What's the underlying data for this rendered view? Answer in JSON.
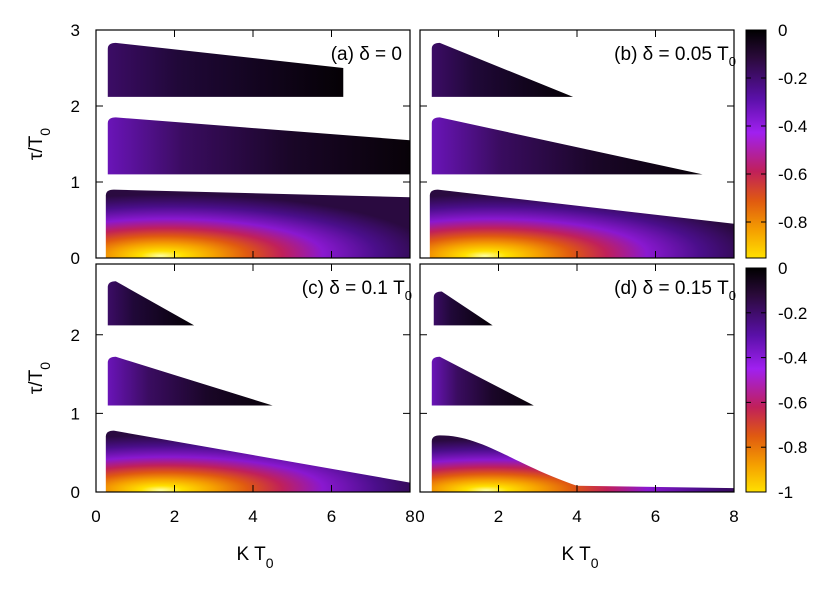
{
  "chart_data": {
    "type": "heatmap",
    "colormap": [
      "#000000",
      "#2a0a3a",
      "#5a10a8",
      "#a020f0",
      "#c0205a",
      "#e05a10",
      "#f5a000",
      "#ffe000"
    ],
    "xlabel": "K T",
    "xlabel_sub": "0",
    "ylabel": "τ/T",
    "ylabel_sub": "0",
    "xlim": [
      0,
      8
    ],
    "x_ticks": [
      "0",
      "2",
      "4",
      "6",
      "8"
    ],
    "top_ylim": [
      0,
      3
    ],
    "top_y_ticks": [
      "0",
      "1",
      "2",
      "3"
    ],
    "bottom_ylim": [
      0,
      2.9
    ],
    "bottom_y_ticks": [
      "0",
      "1",
      "2"
    ],
    "colorbars": [
      {
        "range": [
          -0.95,
          0
        ],
        "ticks": [
          "0",
          "-0.2",
          "-0.4",
          "-0.6",
          "-0.8"
        ],
        "tick_values": [
          0,
          -0.2,
          -0.4,
          -0.6,
          -0.8
        ]
      },
      {
        "range": [
          -1,
          0
        ],
        "ticks": [
          "0",
          "-0.2",
          "-0.4",
          "-0.6",
          "-0.8",
          "-1"
        ],
        "tick_values": [
          0,
          -0.2,
          -0.4,
          -0.6,
          -0.8,
          -1
        ]
      }
    ],
    "panels": [
      {
        "label_main": "(a) δ = 0",
        "label_sub": "",
        "delta": 0,
        "regions": [
          {
            "band": 0,
            "ymin": 0.0,
            "ymax": 0.9,
            "x_start": 0.25,
            "x_end": 8.0,
            "y_top_end": 0.8,
            "intensity": 0.95
          },
          {
            "band": 1,
            "ymin": 1.1,
            "ymax": 1.85,
            "x_start": 0.3,
            "x_end": 8.0,
            "y_top_end": 1.55,
            "intensity": 0.18
          },
          {
            "band": 2,
            "ymin": 2.12,
            "ymax": 2.83,
            "x_start": 0.3,
            "x_end": 6.3,
            "y_top_end": 2.5,
            "intensity": 0.1
          }
        ]
      },
      {
        "label_main": "(b) δ = 0.05 T",
        "label_sub": "0",
        "delta": 0.05,
        "regions": [
          {
            "band": 0,
            "ymin": 0.0,
            "ymax": 0.9,
            "x_start": 0.25,
            "x_end": 8.0,
            "y_top_end": 0.45,
            "intensity": 0.95
          },
          {
            "band": 1,
            "ymin": 1.1,
            "ymax": 1.85,
            "x_start": 0.3,
            "x_end": 7.2,
            "y_top_end": 1.1,
            "intensity": 0.18
          },
          {
            "band": 2,
            "ymin": 2.12,
            "ymax": 2.83,
            "x_start": 0.3,
            "x_end": 3.9,
            "y_top_end": 2.12,
            "intensity": 0.1
          }
        ]
      },
      {
        "label_main": "(c) δ = 0.1 T",
        "label_sub": "0",
        "delta": 0.1,
        "regions": [
          {
            "band": 0,
            "ymin": 0.0,
            "ymax": 0.78,
            "x_start": 0.25,
            "x_end": 8.0,
            "y_top_end": 0.12,
            "intensity": 0.95
          },
          {
            "band": 1,
            "ymin": 1.1,
            "ymax": 1.72,
            "x_start": 0.3,
            "x_end": 4.5,
            "y_top_end": 1.1,
            "intensity": 0.18
          },
          {
            "band": 2,
            "ymin": 2.12,
            "ymax": 2.68,
            "x_start": 0.3,
            "x_end": 2.5,
            "y_top_end": 2.12,
            "intensity": 0.1
          }
        ]
      },
      {
        "label_main": "(d) δ = 0.15 T",
        "label_sub": "0",
        "delta": 0.15,
        "regions": [
          {
            "band": 0,
            "ymin": 0.0,
            "ymax": 0.72,
            "x_start": 0.3,
            "x_end": 8.0,
            "y_top_end": 0.05,
            "intensity": 0.95
          },
          {
            "band": 1,
            "ymin": 1.1,
            "ymax": 1.72,
            "x_start": 0.3,
            "x_end": 2.9,
            "y_top_end": 1.1,
            "intensity": 0.18
          },
          {
            "band": 2,
            "ymin": 2.12,
            "ymax": 2.55,
            "x_start": 0.35,
            "x_end": 1.85,
            "y_top_end": 2.12,
            "intensity": 0.1
          }
        ]
      }
    ]
  }
}
